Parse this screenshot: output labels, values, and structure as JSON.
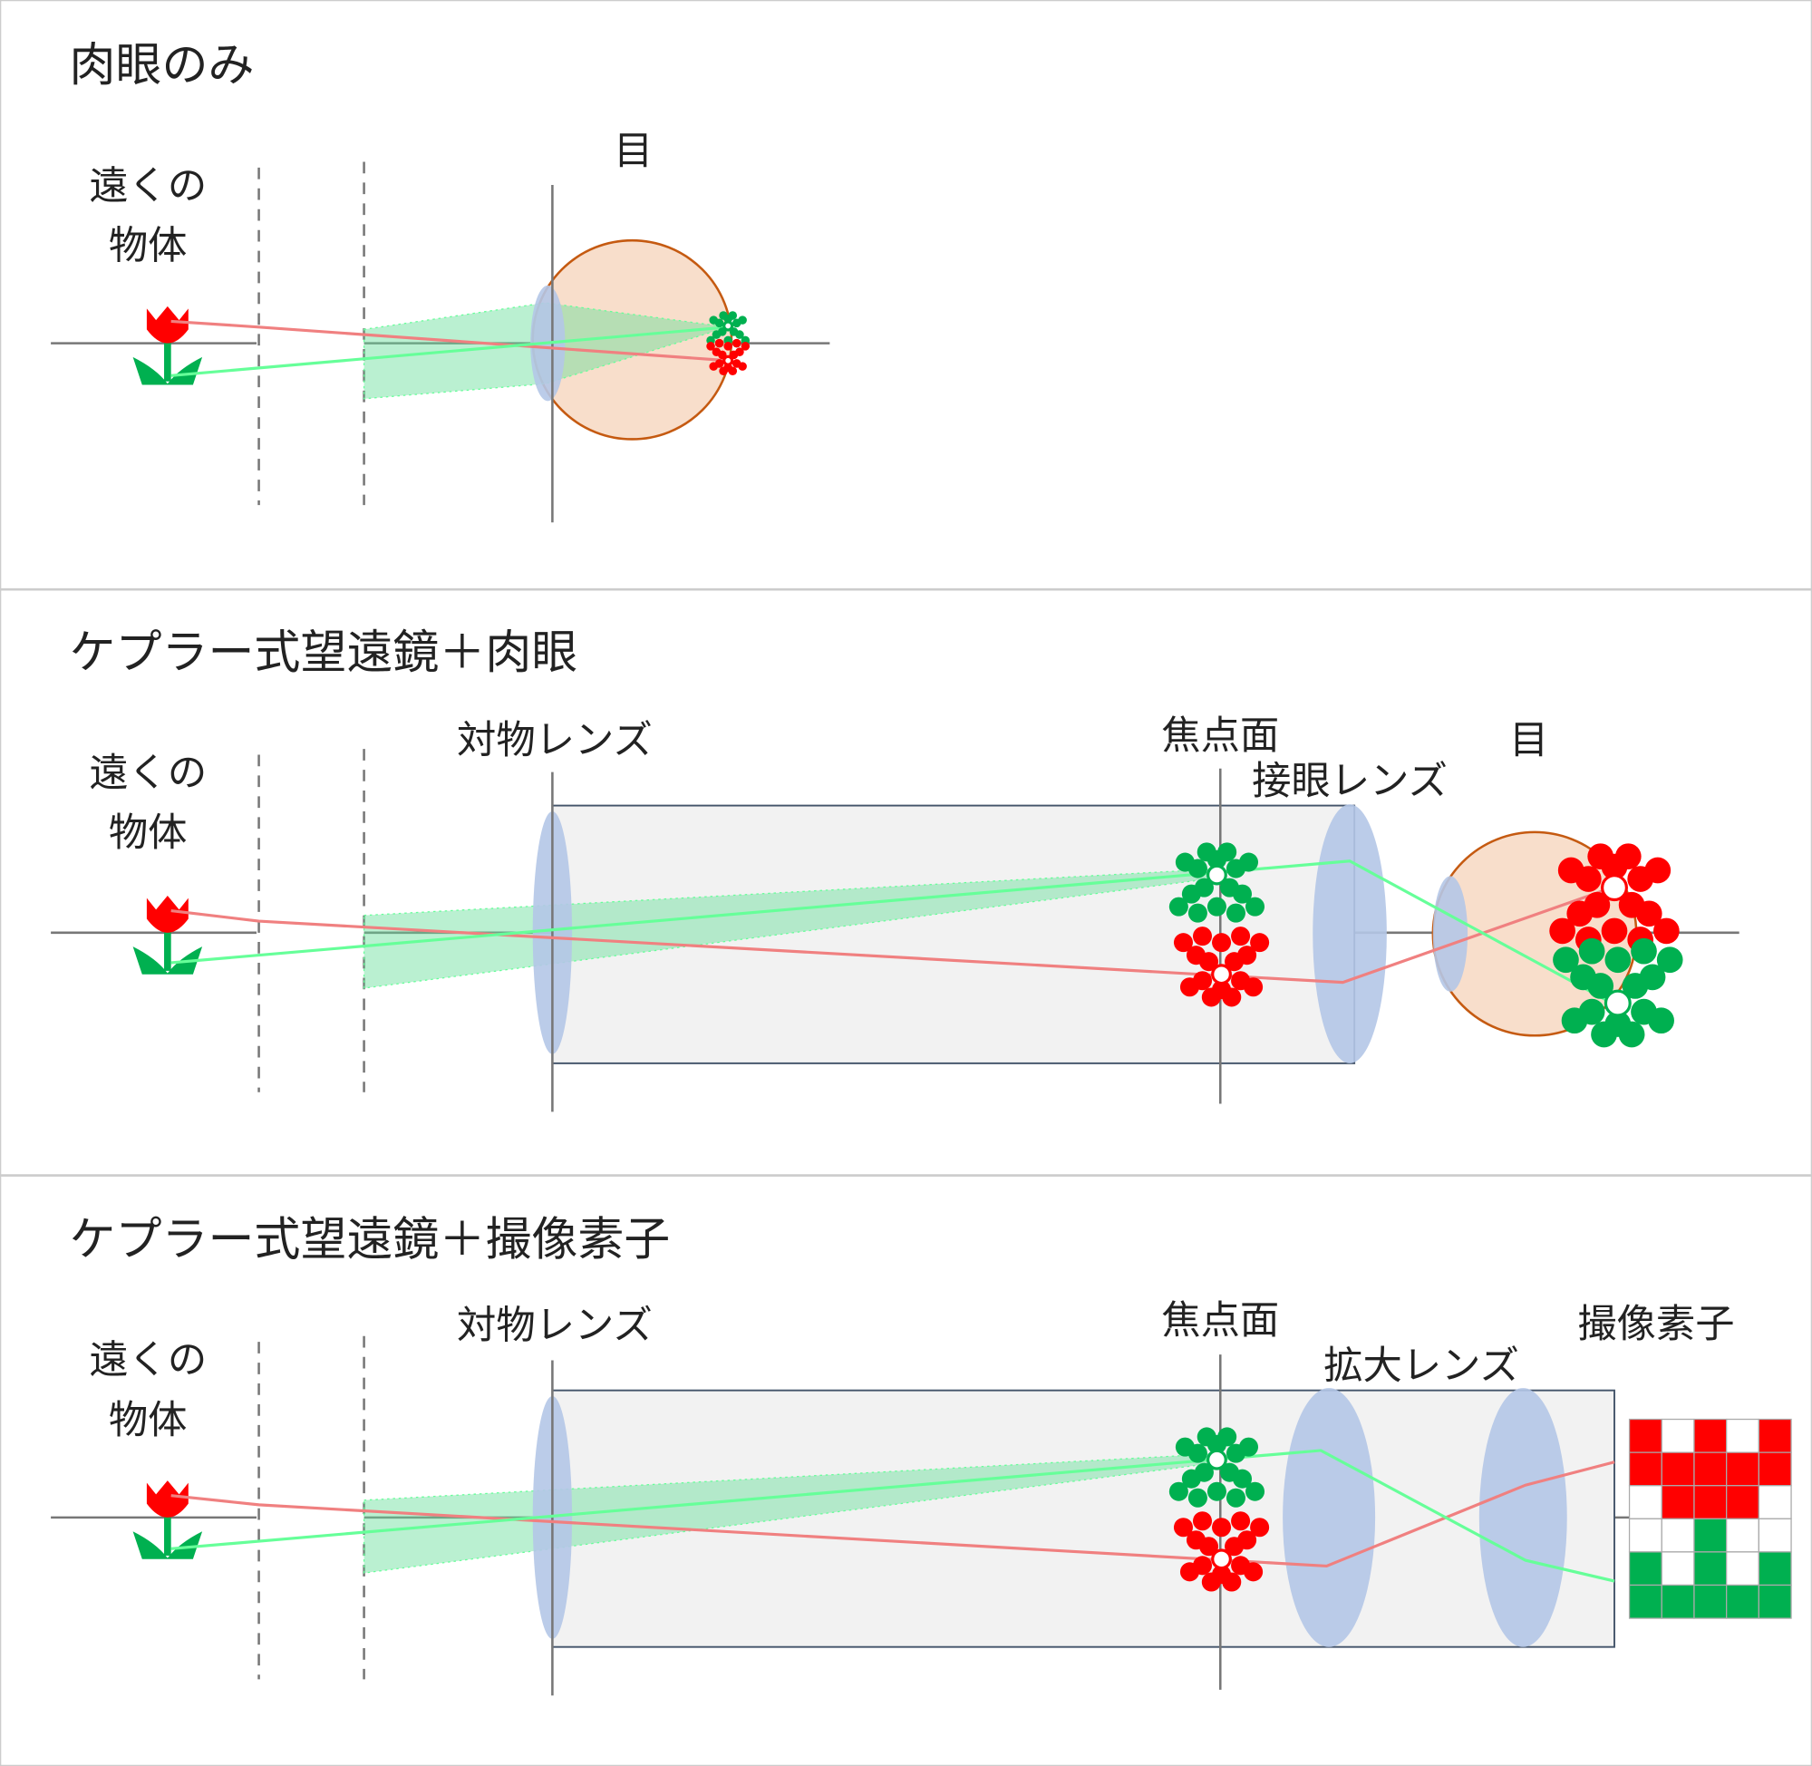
{
  "panels": [
    {
      "title": "肉眼のみ",
      "object_label": [
        "遠くの",
        "物体"
      ],
      "labels": [
        "目"
      ]
    },
    {
      "title": "ケプラー式望遠鏡＋肉眼",
      "object_label": [
        "遠くの",
        "物体"
      ],
      "labels": [
        "対物レンズ",
        "焦点面",
        "接眼レンズ",
        "目"
      ]
    },
    {
      "title": "ケプラー式望遠鏡＋撮像素子",
      "object_label": [
        "遠くの",
        "物体"
      ],
      "labels": [
        "対物レンズ",
        "焦点面",
        "拡大レンズ",
        "撮像素子"
      ]
    }
  ]
}
